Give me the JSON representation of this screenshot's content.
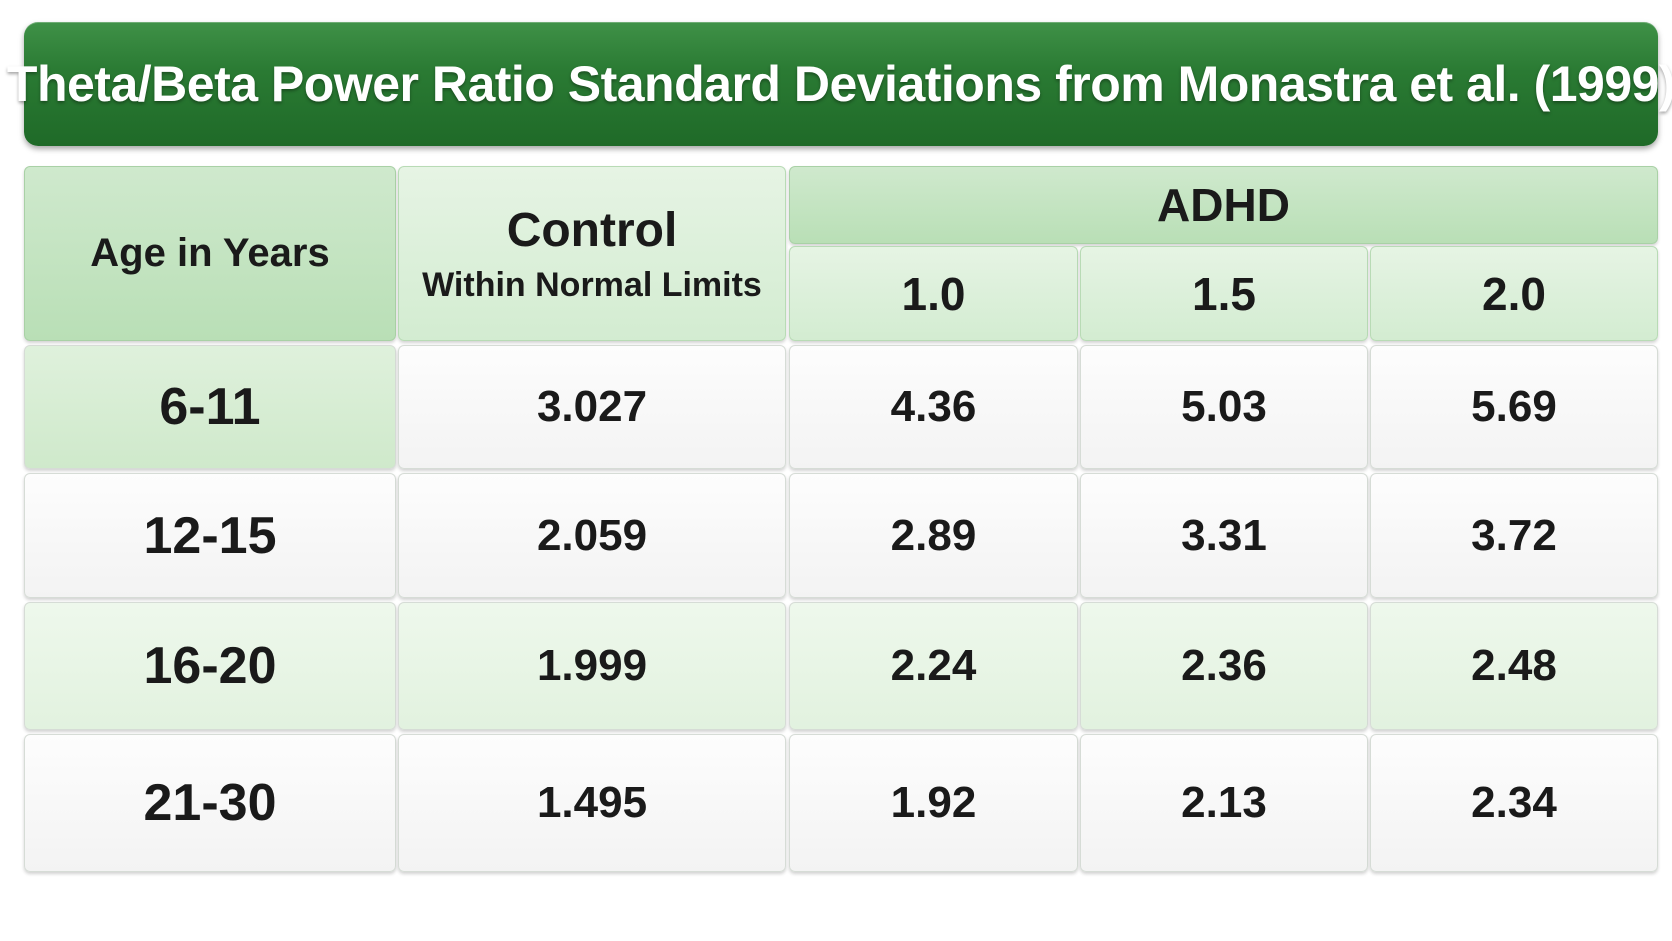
{
  "title": "Theta/Beta Power Ratio Standard Deviations from Monastra et al. (1999)",
  "header": {
    "age": "Age in Years",
    "control": "Control",
    "control_sub": "Within Normal Limits",
    "adhd": "ADHD",
    "levels": [
      "1.0",
      "1.5",
      "2.0"
    ]
  },
  "rows": [
    {
      "age": "6-11",
      "control": "3.027",
      "adhd": [
        "4.36",
        "5.03",
        "5.69"
      ]
    },
    {
      "age": "12-15",
      "control": "2.059",
      "adhd": [
        "2.89",
        "3.31",
        "3.72"
      ]
    },
    {
      "age": "16-20",
      "control": "1.999",
      "adhd": [
        "2.24",
        "2.36",
        "2.48"
      ]
    },
    {
      "age": "21-30",
      "control": "1.495",
      "adhd": [
        "1.92",
        "2.13",
        "2.34"
      ]
    }
  ],
  "colors": {
    "banner": "#2a7a33",
    "header": "#c4e4c1",
    "row_alt": "#e8f5e6"
  }
}
